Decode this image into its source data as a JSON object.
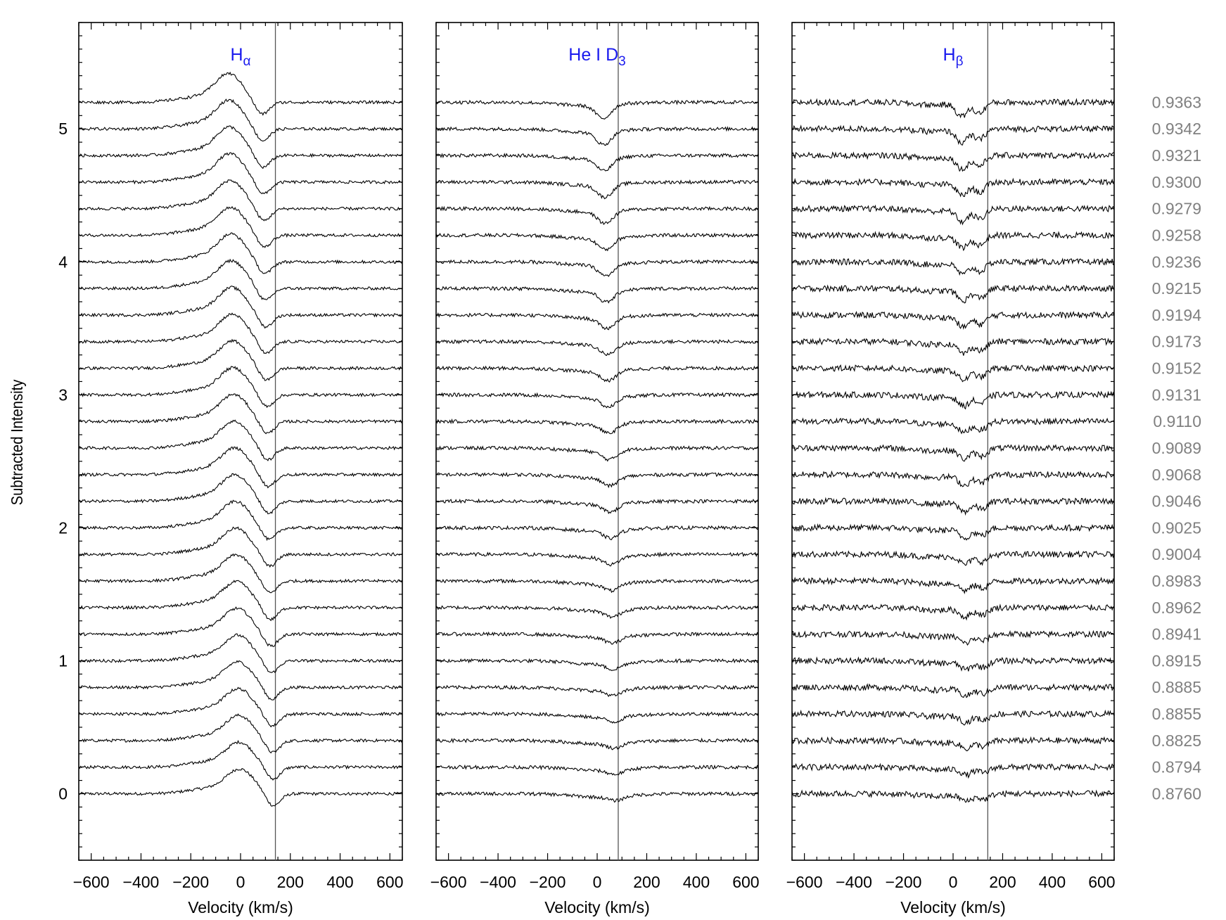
{
  "chart_data": {
    "type": "line",
    "ylabel": "Subtracted Intensity",
    "ylim": [
      -0.5,
      5.8
    ],
    "yticks": [
      0,
      1,
      2,
      3,
      4,
      5
    ],
    "ytick_labels": [
      "0",
      "1",
      "2",
      "3",
      "4",
      "5"
    ],
    "trace_offset_step": 0.2,
    "phases": [
      "0.8760",
      "0.8794",
      "0.8825",
      "0.8855",
      "0.8885",
      "0.8915",
      "0.8941",
      "0.8962",
      "0.8983",
      "0.9004",
      "0.9025",
      "0.9046",
      "0.9068",
      "0.9089",
      "0.9110",
      "0.9131",
      "0.9152",
      "0.9173",
      "0.9194",
      "0.9215",
      "0.9236",
      "0.9258",
      "0.9279",
      "0.9300",
      "0.9321",
      "0.9342",
      "0.9363"
    ],
    "phase_color": "#808080",
    "title_color": "#1a1aee",
    "panels": [
      {
        "title_main": "H",
        "title_sub": "α",
        "xlabel": "Velocity (km/s)",
        "xlim": [
          -650,
          650
        ],
        "xticks": [
          -600,
          -400,
          -200,
          0,
          200,
          400,
          600
        ],
        "xtick_labels": [
          "−600",
          "−400",
          "−200",
          "0",
          "200",
          "400",
          "600"
        ],
        "reference_velocity": 140,
        "profile": "emission-absorption",
        "emission_center_start": 0,
        "emission_center_end": -45,
        "emission_amp_start": 0.17,
        "emission_amp_end": 0.2,
        "absorption_center_start": 130,
        "absorption_center_end": 85,
        "absorption_depth": 0.1
      },
      {
        "title_main": "He I D",
        "title_sub": "3",
        "xlabel": "Velocity (km/s)",
        "xlim": [
          -650,
          650
        ],
        "xticks": [
          -600,
          -400,
          -200,
          0,
          200,
          400,
          600
        ],
        "xtick_labels": [
          "−600",
          "−400",
          "−200",
          "0",
          "200",
          "400",
          "600"
        ],
        "reference_velocity": 85,
        "profile": "absorption",
        "absorption_center_start": 75,
        "absorption_center_end": 25,
        "absorption_depth_start": 0.03,
        "absorption_depth_end": 0.1
      },
      {
        "title_main": "H",
        "title_sub": "β",
        "xlabel": "Velocity (km/s)",
        "xlim": [
          -650,
          650
        ],
        "xticks": [
          -600,
          -400,
          -200,
          0,
          200,
          400,
          600
        ],
        "xtick_labels": [
          "−600",
          "−400",
          "−200",
          "0",
          "200",
          "400",
          "600"
        ],
        "reference_velocity": 140,
        "profile": "double-absorption",
        "absorption_center_start": 90,
        "absorption_center_end": 70,
        "absorption_depth_start": 0.05,
        "absorption_depth_end": 0.1
      }
    ]
  }
}
